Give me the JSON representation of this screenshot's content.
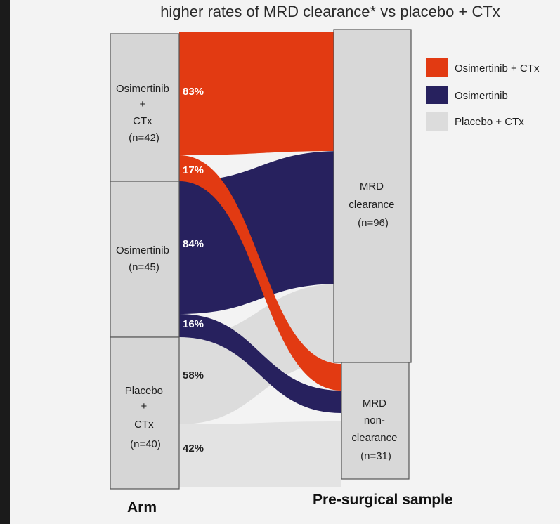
{
  "title": "higher rates of MRD clearance* vs placebo + CTx",
  "colors": {
    "osi_ctx": "#e23a12",
    "osi": "#27215e",
    "placebo": "#dcdcdc",
    "node": "#d6d6d6",
    "background": "#f3f3f3"
  },
  "legend": [
    {
      "label": "Osimertinib + CTx",
      "color": "#e23a12"
    },
    {
      "label": "Osimertinib",
      "color": "#27215e"
    },
    {
      "label": "Placebo + CTx",
      "color": "#dcdcdc"
    }
  ],
  "arms": [
    {
      "lines": [
        "Osimertinib",
        "+",
        "CTx",
        "(n=42)"
      ]
    },
    {
      "lines": [
        "Osimertinib",
        "(n=45)"
      ]
    },
    {
      "lines": [
        "Placebo",
        "+",
        "CTx",
        "(n=40)"
      ]
    }
  ],
  "outcomes": [
    {
      "lines": [
        "MRD",
        "clearance",
        "(n=96)"
      ]
    },
    {
      "lines": [
        "MRD",
        "non-",
        "clearance",
        "(n=31)"
      ]
    }
  ],
  "flows": [
    {
      "arm": "Osimertinib + CTx",
      "outcome": "MRD clearance",
      "percent": "83%"
    },
    {
      "arm": "Osimertinib + CTx",
      "outcome": "MRD non-clearance",
      "percent": "17%"
    },
    {
      "arm": "Osimertinib",
      "outcome": "MRD clearance",
      "percent": "84%"
    },
    {
      "arm": "Osimertinib",
      "outcome": "MRD non-clearance",
      "percent": "16%"
    },
    {
      "arm": "Placebo + CTx",
      "outcome": "MRD clearance",
      "percent": "58%"
    },
    {
      "arm": "Placebo + CTx",
      "outcome": "MRD non-clearance",
      "percent": "42%"
    }
  ],
  "axis": {
    "left": "Arm",
    "right": "Pre-surgical sample"
  }
}
